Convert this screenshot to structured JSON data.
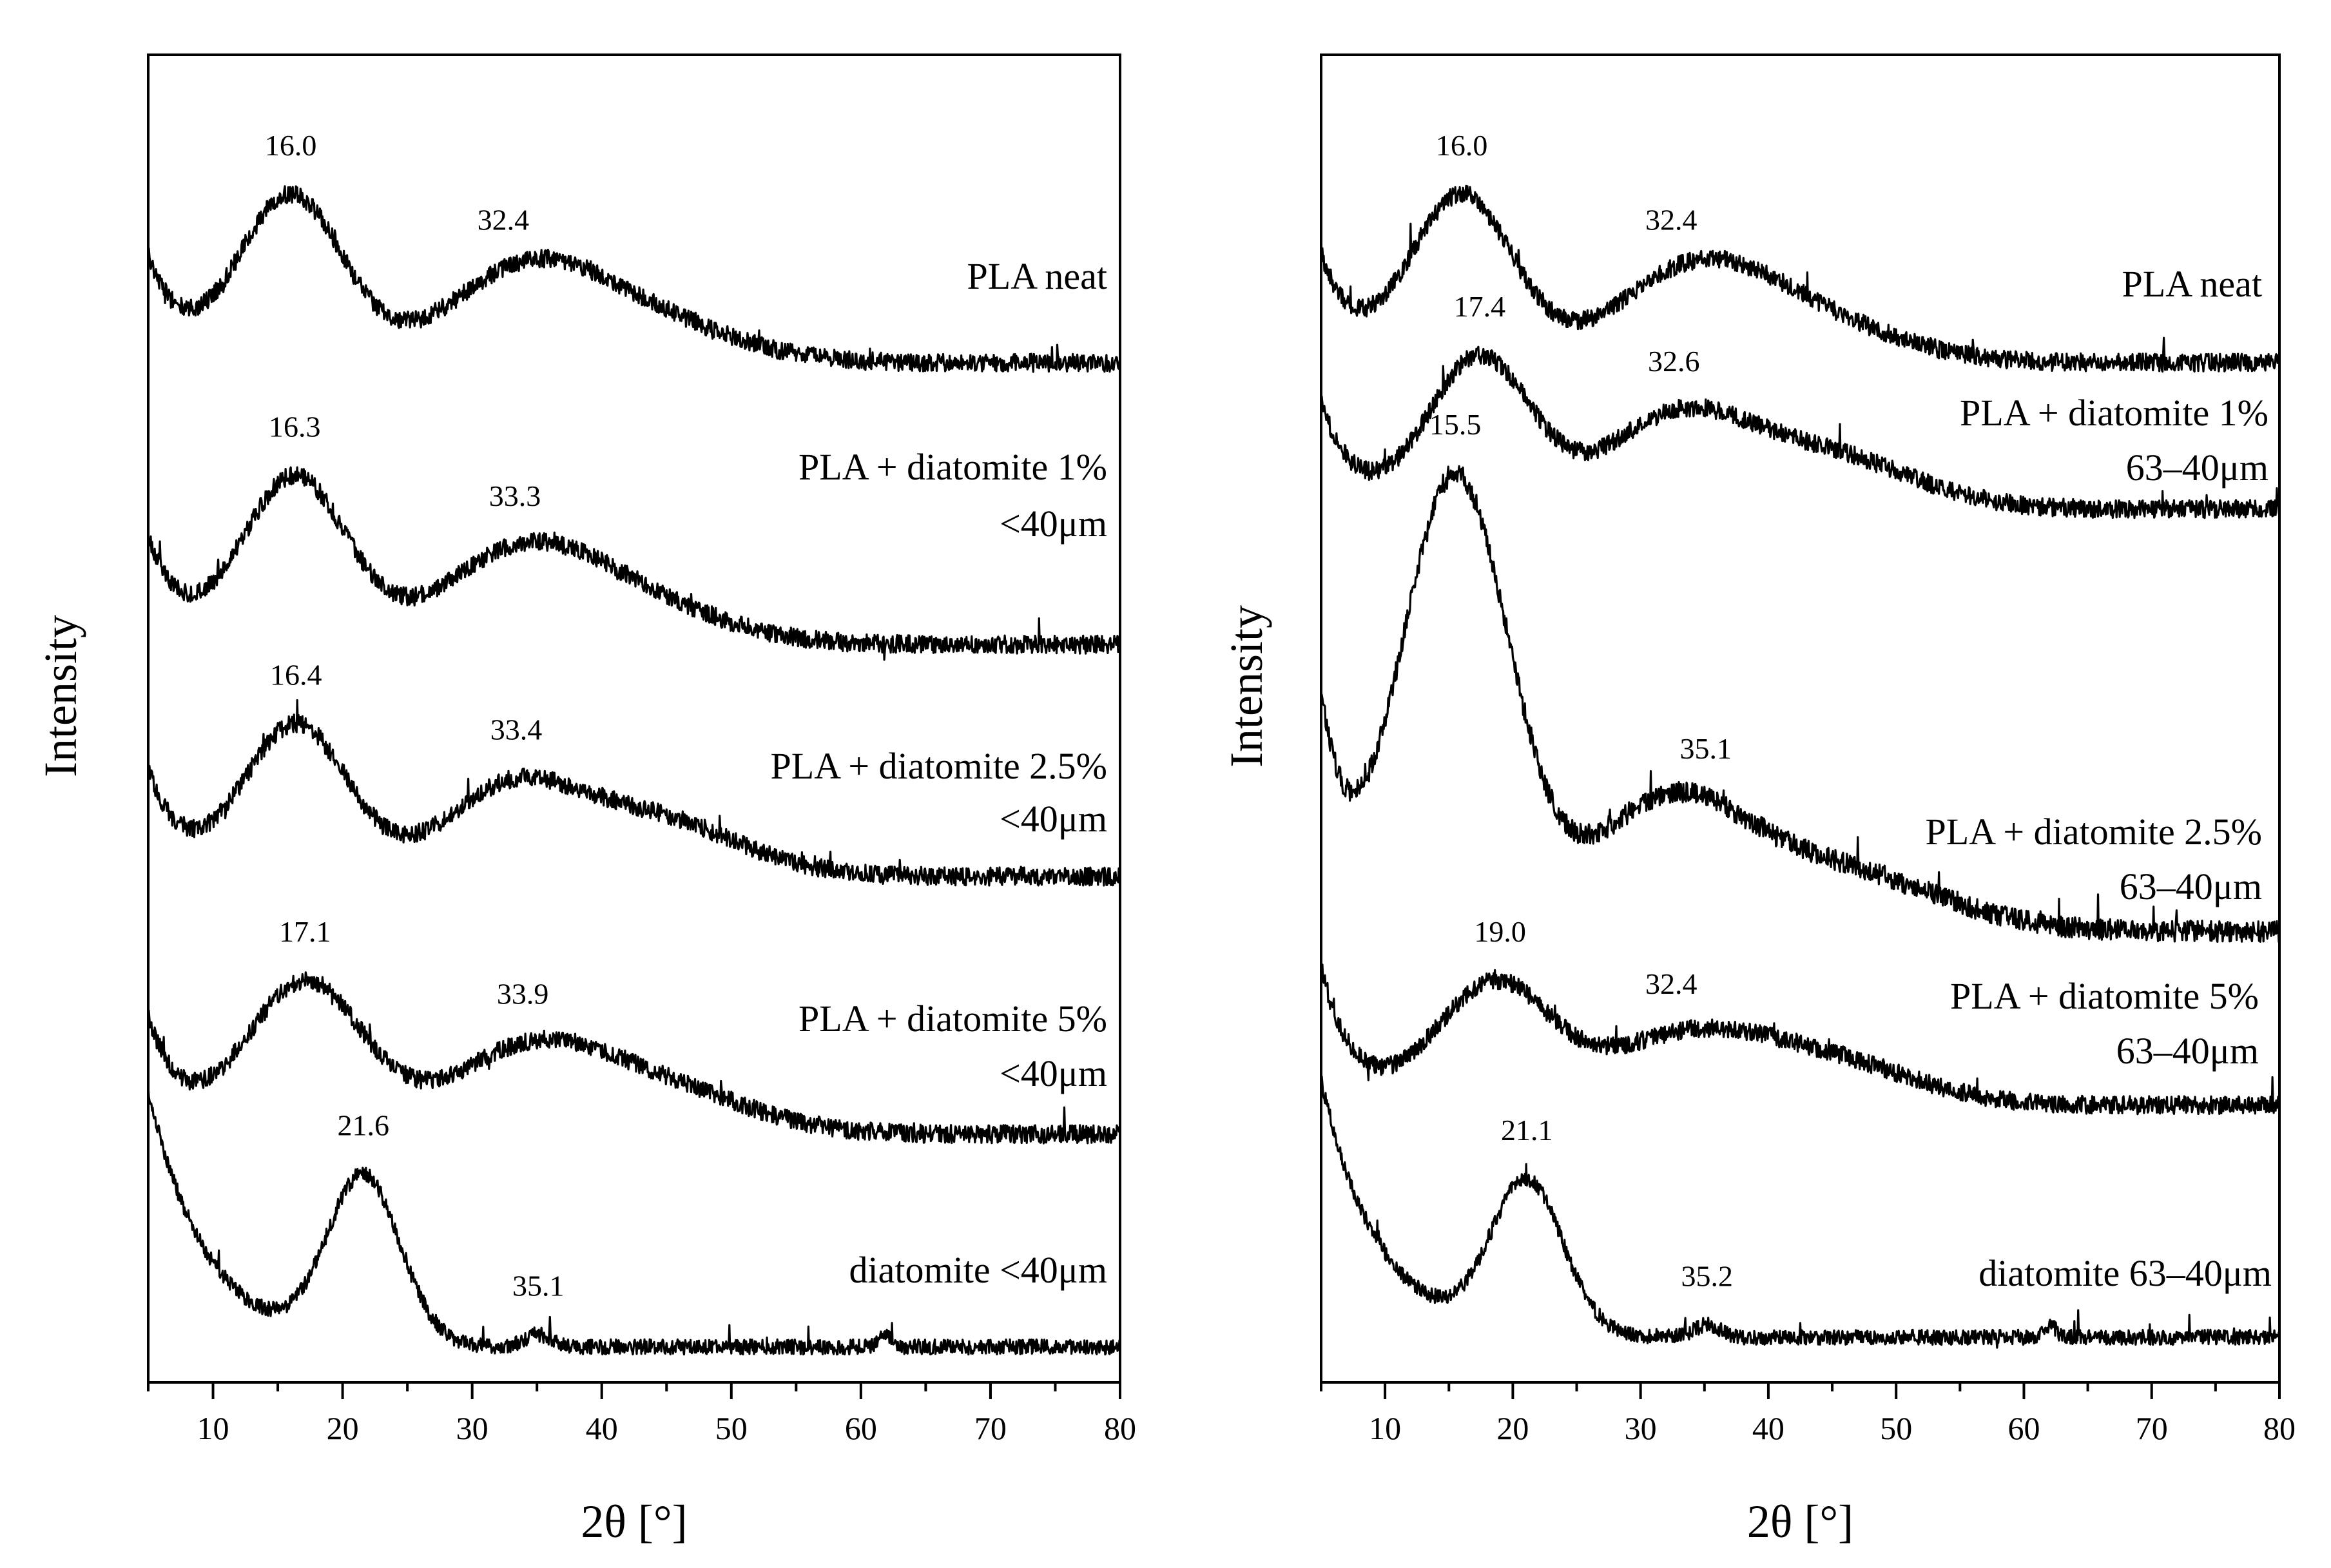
{
  "chart_data": [
    {
      "type": "line",
      "panel": "left",
      "xlabel": "2θ [°]",
      "ylabel": "Intensity",
      "xlim": [
        5,
        80
      ],
      "xticks": [
        10,
        20,
        30,
        40,
        50,
        60,
        70,
        80
      ],
      "series": [
        {
          "name": "PLA neat",
          "label_lines": [
            "PLA neat"
          ],
          "peaks": [
            {
              "x": 16.0,
              "label": "16.0"
            },
            {
              "x": 32.4,
              "label": "32.4"
            }
          ],
          "profile": {
            "base": 0.02,
            "start": 0.35,
            "decay": 2.5,
            "dip_x": 9.5,
            "humps": [
              {
                "x": 16.0,
                "amp": 0.55,
                "w": 4.0
              },
              {
                "x": 34.0,
                "amp": 0.28,
                "w": 6.0
              },
              {
                "x": 43.0,
                "amp": 0.13,
                "w": 7.0
              }
            ],
            "noise": 0.03
          }
        },
        {
          "name": "PLA + diatomite 1% <40μm",
          "label_lines": [
            "PLA + diatomite 1%",
            "<40μm"
          ],
          "peaks": [
            {
              "x": 16.3,
              "label": "16.3"
            },
            {
              "x": 33.3,
              "label": "33.3"
            }
          ],
          "profile": {
            "base": 0.0,
            "start": 0.35,
            "decay": 2.5,
            "dip_x": 9.5,
            "humps": [
              {
                "x": 16.3,
                "amp": 0.55,
                "w": 4.0
              },
              {
                "x": 33.5,
                "amp": 0.27,
                "w": 6.0
              },
              {
                "x": 42.0,
                "amp": 0.13,
                "w": 7.0
              }
            ],
            "noise": 0.03
          }
        },
        {
          "name": "PLA + diatomite 2.5% <40μm",
          "label_lines": [
            "PLA + diatomite 2.5%",
            "<40μm"
          ],
          "peaks": [
            {
              "x": 16.4,
              "label": "16.4"
            },
            {
              "x": 33.4,
              "label": "33.4"
            }
          ],
          "profile": {
            "base": 0.0,
            "start": 0.35,
            "decay": 2.5,
            "dip_x": 9.5,
            "humps": [
              {
                "x": 16.4,
                "amp": 0.5,
                "w": 4.0
              },
              {
                "x": 32.5,
                "amp": 0.25,
                "w": 5.0
              },
              {
                "x": 43.0,
                "amp": 0.2,
                "w": 7.0
              }
            ],
            "noise": 0.03
          }
        },
        {
          "name": "PLA + diatomite 5% <40μm",
          "label_lines": [
            "PLA + diatomite 5%",
            "<40μm"
          ],
          "peaks": [
            {
              "x": 17.1,
              "label": "17.1"
            },
            {
              "x": 33.9,
              "label": "33.9"
            }
          ],
          "profile": {
            "base": 0.0,
            "start": 0.38,
            "decay": 2.5,
            "dip_x": 9.5,
            "humps": [
              {
                "x": 17.1,
                "amp": 0.5,
                "w": 4.5
              },
              {
                "x": 33.9,
                "amp": 0.25,
                "w": 6.0
              },
              {
                "x": 44.0,
                "amp": 0.15,
                "w": 7.0
              }
            ],
            "noise": 0.03
          }
        },
        {
          "name": "diatomite <40μm",
          "label_lines": [
            "diatomite <40μm"
          ],
          "peaks": [
            {
              "x": 21.6,
              "label": "21.6"
            },
            {
              "x": 35.1,
              "label": "35.1"
            }
          ],
          "profile": {
            "base": 0.0,
            "start": 0.85,
            "decay": 4.5,
            "dip_x": 15.0,
            "humps": [
              {
                "x": 21.6,
                "amp": 0.55,
                "w": 2.8
              },
              {
                "x": 35.1,
                "amp": 0.04,
                "w": 1.0
              },
              {
                "x": 62.0,
                "amp": 0.04,
                "w": 0.5
              }
            ],
            "noise": 0.025
          }
        }
      ]
    },
    {
      "type": "line",
      "panel": "right",
      "xlabel": "2θ [°]",
      "ylabel": "Intensity",
      "xlim": [
        5,
        80
      ],
      "xticks": [
        10,
        20,
        30,
        40,
        50,
        60,
        70,
        80
      ],
      "series": [
        {
          "name": "PLA neat",
          "label_lines": [
            "PLA neat"
          ],
          "peaks": [
            {
              "x": 16.0,
              "label": "16.0"
            },
            {
              "x": 32.4,
              "label": "32.4"
            }
          ],
          "profile": {
            "base": 0.02,
            "start": 0.35,
            "decay": 2.5,
            "dip_x": 9.5,
            "humps": [
              {
                "x": 16.0,
                "amp": 0.55,
                "w": 4.0
              },
              {
                "x": 34.0,
                "amp": 0.28,
                "w": 6.0
              },
              {
                "x": 43.0,
                "amp": 0.13,
                "w": 7.0
              }
            ],
            "noise": 0.03
          }
        },
        {
          "name": "PLA + diatomite 1% 63–40μm",
          "label_lines": [
            "PLA + diatomite 1%",
            "63–40μm"
          ],
          "peaks": [
            {
              "x": 17.4,
              "label": "17.4"
            },
            {
              "x": 32.6,
              "label": "32.6"
            }
          ],
          "profile": {
            "base": 0.0,
            "start": 0.35,
            "decay": 2.5,
            "dip_x": 10.0,
            "humps": [
              {
                "x": 17.4,
                "amp": 0.5,
                "w": 4.0
              },
              {
                "x": 32.6,
                "amp": 0.28,
                "w": 5.5
              },
              {
                "x": 44.0,
                "amp": 0.18,
                "w": 7.0
              }
            ],
            "noise": 0.03
          }
        },
        {
          "name": "PLA + diatomite 2.5% 63–40μm",
          "label_lines": [
            "PLA + diatomite 2.5%",
            "63–40μm"
          ],
          "peaks": [
            {
              "x": 15.5,
              "label": "15.5"
            },
            {
              "x": 35.1,
              "label": "35.1"
            }
          ],
          "profile": {
            "base": 0.0,
            "start": 0.75,
            "decay": 2.0,
            "dip_x": 7.0,
            "humps": [
              {
                "x": 15.5,
                "amp": 1.5,
                "w": 4.2
              },
              {
                "x": 32.0,
                "amp": 0.4,
                "w": 6.0
              },
              {
                "x": 45.0,
                "amp": 0.2,
                "w": 8.0
              }
            ],
            "noise": 0.035
          }
        },
        {
          "name": "PLA + diatomite 5% 63–40μm",
          "label_lines": [
            "PLA + diatomite 5%",
            "63–40μm"
          ],
          "peaks": [
            {
              "x": 19.0,
              "label": "19.0"
            },
            {
              "x": 32.4,
              "label": "32.4"
            }
          ],
          "profile": {
            "base": 0.0,
            "start": 0.45,
            "decay": 2.5,
            "dip_x": 11.0,
            "humps": [
              {
                "x": 18.5,
                "amp": 0.4,
                "w": 4.5
              },
              {
                "x": 33.0,
                "amp": 0.2,
                "w": 6.0
              },
              {
                "x": 44.0,
                "amp": 0.15,
                "w": 7.0
              }
            ],
            "noise": 0.03
          }
        },
        {
          "name": "diatomite 63–40μm",
          "label_lines": [
            "diatomite 63–40μm"
          ],
          "peaks": [
            {
              "x": 21.1,
              "label": "21.1"
            },
            {
              "x": 35.2,
              "label": "35.2"
            }
          ],
          "profile": {
            "base": 0.0,
            "start": 0.85,
            "decay": 4.5,
            "dip_x": 15.0,
            "humps": [
              {
                "x": 21.1,
                "amp": 0.5,
                "w": 2.8
              },
              {
                "x": 35.2,
                "amp": 0.04,
                "w": 1.0
              },
              {
                "x": 62.0,
                "amp": 0.04,
                "w": 0.5
              }
            ],
            "noise": 0.025
          }
        }
      ]
    }
  ]
}
